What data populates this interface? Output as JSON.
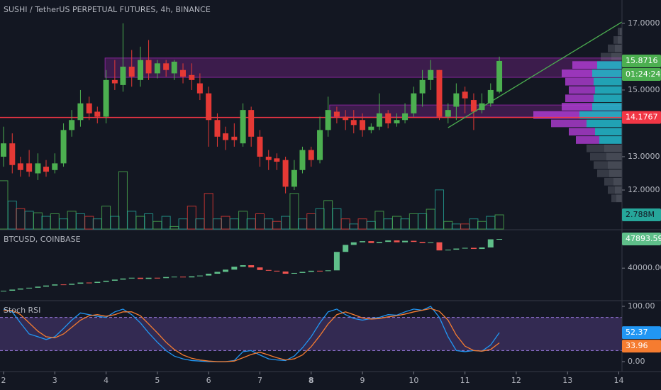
{
  "chart_data": [
    {
      "type": "candlestick",
      "title": "SUSHI / TetherUS PERPETUAL FUTURES, 4h, BINANCE",
      "x": [
        2,
        2.17,
        2.33,
        2.5,
        2.67,
        2.83,
        3,
        3.17,
        3.33,
        3.5,
        3.67,
        3.83,
        4,
        4.17,
        4.33,
        4.5,
        4.67,
        4.83,
        5,
        5.17,
        5.33,
        5.5,
        5.67,
        5.83,
        6,
        6.17,
        6.33,
        6.5,
        6.67,
        6.83,
        7,
        7.17,
        7.33,
        7.5,
        7.67,
        7.83,
        8,
        8.17,
        8.33,
        8.5,
        8.67,
        8.83,
        9,
        9.17,
        9.33,
        9.5,
        9.67,
        9.83,
        10,
        10.17,
        10.33,
        10.5,
        10.67,
        10.83,
        11,
        11.17,
        11.33,
        11.5,
        11.67
      ],
      "ohlc": [
        [
          13.0,
          13.9,
          12.7,
          13.4
        ],
        [
          13.4,
          13.7,
          12.5,
          12.75
        ],
        [
          12.8,
          13.0,
          12.4,
          12.6
        ],
        [
          12.8,
          13.2,
          12.4,
          12.55
        ],
        [
          12.5,
          13.1,
          12.3,
          12.8
        ],
        [
          12.7,
          12.9,
          12.4,
          12.55
        ],
        [
          12.6,
          13.1,
          12.5,
          12.8
        ],
        [
          12.8,
          14.0,
          12.7,
          13.8
        ],
        [
          13.8,
          14.4,
          13.6,
          14.1
        ],
        [
          14.1,
          15.0,
          13.9,
          14.6
        ],
        [
          14.6,
          14.8,
          14.1,
          14.3
        ],
        [
          14.35,
          14.5,
          14.0,
          14.2
        ],
        [
          14.2,
          15.6,
          14.0,
          15.3
        ],
        [
          15.3,
          15.9,
          15.0,
          15.2
        ],
        [
          15.15,
          17.0,
          14.95,
          15.7
        ],
        [
          15.7,
          16.2,
          15.1,
          15.4
        ],
        [
          15.3,
          16.3,
          15.1,
          15.9
        ],
        [
          15.9,
          16.5,
          15.3,
          15.5
        ],
        [
          15.5,
          15.9,
          15.35,
          15.8
        ],
        [
          15.8,
          15.9,
          15.4,
          15.6
        ],
        [
          15.5,
          15.9,
          15.3,
          15.85
        ],
        [
          15.6,
          15.8,
          15.2,
          15.4
        ],
        [
          15.45,
          15.8,
          15.0,
          15.3
        ],
        [
          15.2,
          15.5,
          14.7,
          14.9
        ],
        [
          14.9,
          15.1,
          13.3,
          14.1
        ],
        [
          14.1,
          14.3,
          13.3,
          13.6
        ],
        [
          13.7,
          13.9,
          13.2,
          13.5
        ],
        [
          13.6,
          14.0,
          13.3,
          13.5
        ],
        [
          13.4,
          14.6,
          13.3,
          14.4
        ],
        [
          14.4,
          14.5,
          13.3,
          13.6
        ],
        [
          13.6,
          13.8,
          12.7,
          13.0
        ],
        [
          13.0,
          13.2,
          12.6,
          12.9
        ],
        [
          12.95,
          13.1,
          12.6,
          12.85
        ],
        [
          12.9,
          13.0,
          11.9,
          12.1
        ],
        [
          12.1,
          12.9,
          12.0,
          12.6
        ],
        [
          12.6,
          13.3,
          12.5,
          13.2
        ],
        [
          13.2,
          13.3,
          12.7,
          12.9
        ],
        [
          12.9,
          14.2,
          12.8,
          13.8
        ],
        [
          13.8,
          14.8,
          13.6,
          14.4
        ],
        [
          14.35,
          14.5,
          14.0,
          14.2
        ],
        [
          14.2,
          14.4,
          13.8,
          14.1
        ],
        [
          14.1,
          14.4,
          13.7,
          13.95
        ],
        [
          14.1,
          14.3,
          13.6,
          13.8
        ],
        [
          13.8,
          14.0,
          13.7,
          13.9
        ],
        [
          13.9,
          14.9,
          13.8,
          14.3
        ],
        [
          14.3,
          14.4,
          13.85,
          14.0
        ],
        [
          14.0,
          14.3,
          13.9,
          14.1
        ],
        [
          14.1,
          14.6,
          14.0,
          14.3
        ],
        [
          14.3,
          15.1,
          14.2,
          14.9
        ],
        [
          14.9,
          15.6,
          14.5,
          15.3
        ],
        [
          15.3,
          15.9,
          15.0,
          15.6
        ],
        [
          15.6,
          15.6,
          14.1,
          14.2
        ],
        [
          14.2,
          14.6,
          14.0,
          14.4
        ],
        [
          14.5,
          15.2,
          14.1,
          14.9
        ],
        [
          14.95,
          15.1,
          14.3,
          14.75
        ],
        [
          14.7,
          14.9,
          13.8,
          14.35
        ],
        [
          14.4,
          14.9,
          14.3,
          14.6
        ],
        [
          14.6,
          15.2,
          14.5,
          15.0
        ],
        [
          14.95,
          16.0,
          14.9,
          15.8716
        ]
      ],
      "up_color": "#4caf50",
      "down_color": "#e53935",
      "ylim": [
        10.83,
        17.7
      ],
      "yticks": [
        {
          "value": 17,
          "label": "17.0000"
        },
        {
          "value": 15,
          "label": "15.0000"
        },
        {
          "value": 13,
          "label": "13.0000"
        },
        {
          "value": 12,
          "label": "12.0000"
        }
      ],
      "countdown": "01:24:24",
      "hline": {
        "value": 14.1767,
        "color": "#f23645"
      },
      "zones": [
        {
          "x0": 3.98,
          "y": [
            15.38,
            15.96
          ]
        },
        {
          "x0": 8.36,
          "y": [
            14.19,
            14.55
          ]
        }
      ],
      "zone_color": "#9c27b0",
      "trendline": {
        "x": [
          10.67,
          14.06
        ],
        "y": [
          13.87,
          17.04
        ],
        "color": "#4caf50"
      },
      "volume": {
        "ylim": [
          0,
          11.3
        ],
        "color": "#26a69a",
        "values": [
          9.5,
          5.5,
          4.0,
          3.5,
          3.2,
          2.5,
          3.0,
          2.0,
          3.5,
          3.0,
          2.5,
          2.0,
          4.5,
          2.5,
          11.3,
          3.5,
          2.5,
          3.0,
          1.5,
          2.5,
          0.5,
          2.0,
          4.5,
          2.0,
          7.0,
          2.0,
          2.5,
          2.0,
          3.5,
          2.0,
          3.0,
          2.0,
          1.5,
          2.5,
          7.0,
          2.0,
          3.0,
          4.0,
          5.6,
          4.0,
          2.0,
          1.0,
          2.0,
          1.5,
          3.5,
          2.0,
          2.5,
          2.0,
          3.0,
          3.0,
          3.9,
          7.7,
          1.5,
          1.0,
          1.0,
          2.0,
          1.5,
          2.5,
          2.788
        ],
        "value_labels": [
          null,
          null,
          null,
          null,
          null,
          null,
          null,
          null,
          null,
          null,
          null,
          null,
          null,
          null,
          null,
          null,
          null,
          null,
          null,
          null,
          null,
          null,
          null,
          null,
          null,
          null,
          null,
          null,
          null,
          null,
          null,
          null,
          null,
          null,
          null,
          null,
          null,
          null,
          null,
          null,
          null,
          null,
          null,
          null,
          null,
          null,
          null,
          null,
          null,
          null,
          null,
          null,
          null,
          null,
          null,
          null,
          null,
          null,
          "2.788M"
        ]
      },
      "profile": {
        "prices": [
          11.75,
          12.0,
          12.25,
          12.5,
          12.75,
          13.0,
          13.25,
          13.5,
          13.75,
          14.0,
          14.25,
          14.5,
          14.75,
          15.0,
          15.25,
          15.5,
          15.75,
          16.0,
          16.25,
          16.5,
          16.75
        ],
        "up": [
          8,
          10,
          12,
          18,
          20,
          22,
          25,
          32,
          38,
          50,
          60,
          42,
          40,
          38,
          40,
          42,
          35,
          15,
          10,
          6,
          3
        ],
        "down": [
          7,
          10,
          13,
          17,
          20,
          23,
          25,
          33,
          37,
          50,
          65,
          43,
          40,
          37,
          40,
          43,
          35,
          15,
          10,
          6,
          3
        ],
        "value_area": [
          13.45,
          15.95
        ],
        "up_color": "#26c6da",
        "down_color": "#b23dd6",
        "outside_color": "#787b86"
      }
    },
    {
      "type": "candlestick",
      "title": "BTCUSD, COINBASE",
      "open": [
        33700,
        33900,
        34200,
        34500,
        34700,
        35000,
        35300,
        35600,
        35500,
        35800,
        36100,
        36000,
        36300,
        36600,
        36900,
        37200,
        37400,
        37100,
        37400,
        37300,
        37600,
        37700,
        37500,
        37800,
        38000,
        38500,
        39000,
        39600,
        40400,
        40800,
        40200,
        39500,
        39300,
        39100,
        38500,
        38700,
        39000,
        39300,
        39200,
        39400,
        44400,
        46300,
        47000,
        47300,
        46800,
        47100,
        47500,
        47000,
        47400,
        47100,
        46800,
        47000,
        44800,
        45000,
        45300,
        45500,
        45200,
        45600,
        47800
      ],
      "close": [
        33900,
        34200,
        34500,
        34700,
        35000,
        35300,
        35600,
        35500,
        35800,
        36100,
        36000,
        36300,
        36600,
        36900,
        37200,
        37400,
        37100,
        37400,
        37300,
        37600,
        37700,
        37500,
        37800,
        38000,
        38500,
        39000,
        39600,
        40400,
        40800,
        40200,
        39500,
        39300,
        39100,
        38500,
        38700,
        39000,
        39300,
        39200,
        39400,
        44400,
        46300,
        47000,
        47300,
        46800,
        47100,
        47500,
        47000,
        47400,
        47100,
        46800,
        47000,
        44800,
        45000,
        45300,
        45500,
        45200,
        45600,
        47800,
        47893.59
      ],
      "up_color": "#5fbf8a",
      "down_color": "#ef5350",
      "ylim": [
        31400,
        50200
      ],
      "yticks": [
        {
          "value": 40000,
          "label": "40000.00"
        }
      ]
    },
    {
      "type": "line",
      "title": "Stoch RSI",
      "series": [
        {
          "color": "#2196f3",
          "values": [
            95,
            90,
            70,
            50,
            45,
            40,
            45,
            60,
            75,
            88,
            85,
            82,
            80,
            90,
            95,
            85,
            70,
            52,
            35,
            20,
            10,
            5,
            2,
            1,
            0,
            0,
            0,
            2,
            18,
            20,
            12,
            5,
            3,
            2,
            10,
            25,
            45,
            70,
            90,
            95,
            85,
            78,
            75,
            78,
            80,
            85,
            84,
            90,
            95,
            93,
            100,
            80,
            45,
            20,
            18,
            20,
            19,
            30,
            52.37
          ]
        },
        {
          "color": "#f57c30",
          "values": [
            92,
            93,
            85,
            70,
            55,
            45,
            43,
            50,
            62,
            75,
            83,
            85,
            82,
            85,
            90,
            90,
            83,
            68,
            52,
            35,
            22,
            12,
            6,
            3,
            1,
            0,
            0,
            1,
            7,
            13,
            17,
            12,
            7,
            3,
            5,
            12,
            27,
            47,
            68,
            85,
            90,
            85,
            79,
            77,
            78,
            81,
            83,
            86,
            90,
            93,
            96,
            91,
            75,
            48,
            28,
            20,
            19,
            22,
            33.96
          ]
        }
      ],
      "band": [
        20,
        80
      ],
      "band_color": "#7e57c2",
      "ylim": [
        -16.7,
        109
      ],
      "yticks": [
        {
          "value": 100,
          "label": "100.00"
        },
        {
          "value": 0,
          "label": "0.00"
        }
      ],
      "xlim": [
        1.931,
        14.062
      ],
      "xticks": [
        2,
        3,
        4,
        5,
        6,
        7,
        8,
        9,
        10,
        11,
        12,
        13,
        14
      ],
      "bold_xticks": [
        8
      ]
    }
  ]
}
